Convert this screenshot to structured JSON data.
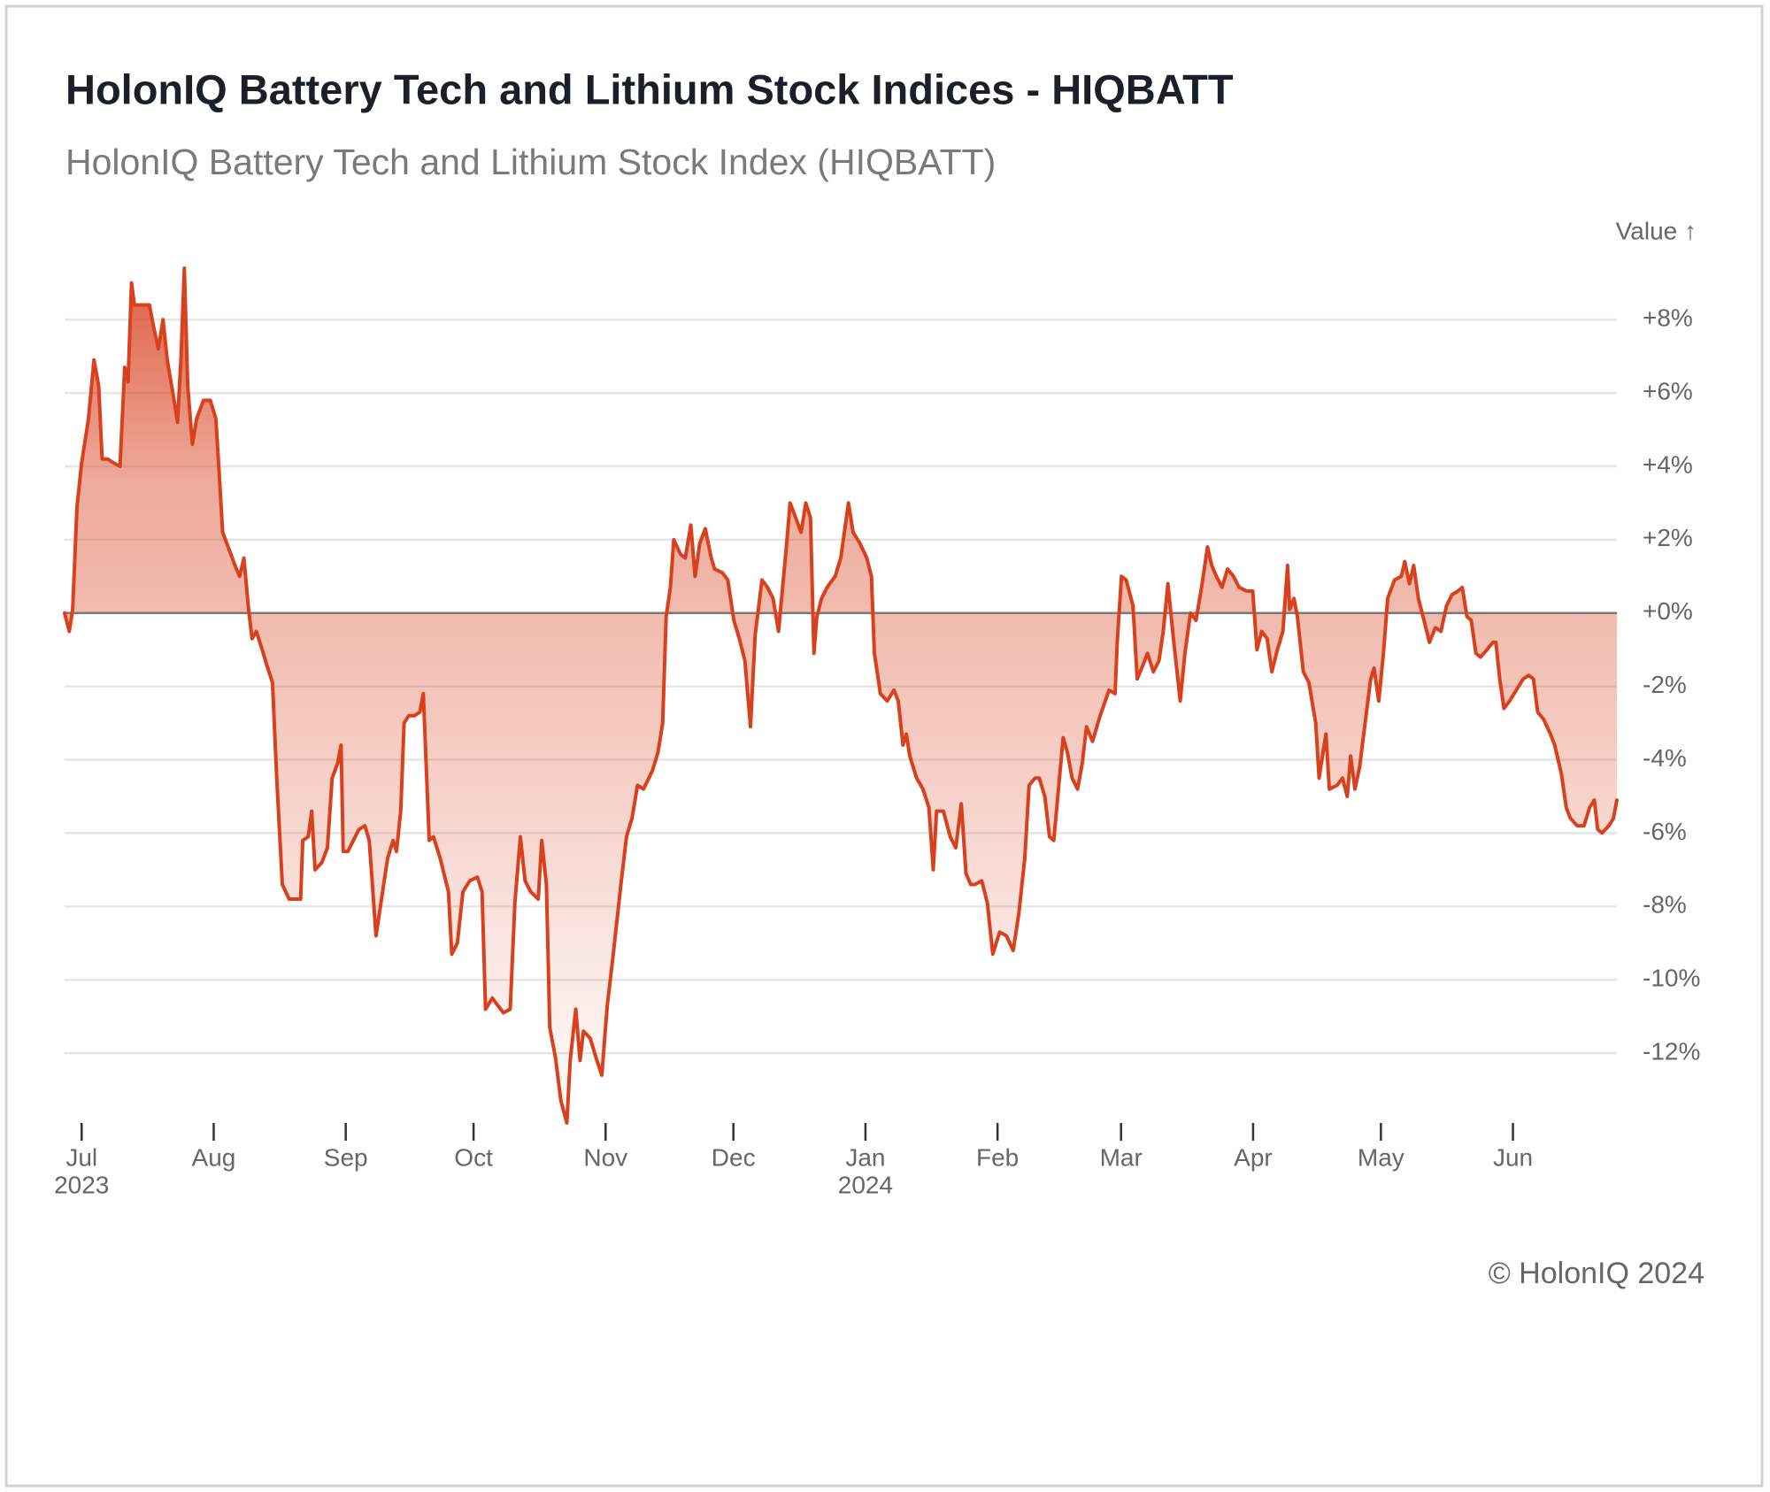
{
  "chart_data": {
    "type": "area",
    "title": "HolonIQ Battery Tech and Lithium Stock Indices - HIQBATT",
    "subtitle": "HolonIQ Battery Tech and Lithium Stock Index (HIQBATT)",
    "y_label": "Value ↑",
    "footer": "© HolonIQ 2024",
    "color": "#d9411e",
    "grid": true,
    "xlim": [
      -4,
      360.4
    ],
    "ylim": [
      -14,
      9.5
    ],
    "xticks": [
      {
        "value": 0,
        "label": "Jul",
        "year": "2023"
      },
      {
        "value": 31,
        "label": "Aug"
      },
      {
        "value": 62,
        "label": "Sep"
      },
      {
        "value": 92,
        "label": "Oct"
      },
      {
        "value": 123,
        "label": "Nov"
      },
      {
        "value": 153,
        "label": "Dec"
      },
      {
        "value": 184,
        "label": "Jan",
        "year": "2024"
      },
      {
        "value": 215,
        "label": "Feb"
      },
      {
        "value": 244,
        "label": "Mar"
      },
      {
        "value": 275,
        "label": "Apr"
      },
      {
        "value": 305,
        "label": "May"
      },
      {
        "value": 336,
        "label": "Jun"
      }
    ],
    "yticks": [
      {
        "value": 8,
        "label": "+8%"
      },
      {
        "value": 6,
        "label": "+6%"
      },
      {
        "value": 4,
        "label": "+4%"
      },
      {
        "value": 2,
        "label": "+2%"
      },
      {
        "value": 0,
        "label": "+0%"
      },
      {
        "value": -2,
        "label": "-2%"
      },
      {
        "value": -4,
        "label": "-4%"
      },
      {
        "value": -6,
        "label": "-6%"
      },
      {
        "value": -8,
        "label": "-8%"
      },
      {
        "value": -10,
        "label": "-10%"
      },
      {
        "value": -12,
        "label": "-12%"
      }
    ],
    "x": [
      -4.0,
      -2.9,
      -2.1,
      -1.1,
      0.0,
      1.6,
      2.9,
      4.0,
      4.8,
      6.1,
      7.4,
      9.0,
      10.1,
      10.9,
      11.7,
      12.4,
      13.8,
      15.9,
      16.9,
      18.0,
      19.1,
      20.1,
      21.7,
      22.5,
      23.3,
      24.1,
      24.9,
      26.0,
      27.0,
      28.6,
      30.2,
      31.5,
      32.3,
      33.1,
      34.4,
      36.0,
      37.1,
      38.1,
      39.2,
      40.0,
      41.0,
      42.4,
      43.4,
      44.8,
      45.8,
      47.1,
      48.7,
      50.3,
      51.4,
      51.9,
      53.2,
      54.0,
      54.8,
      56.4,
      57.7,
      58.8,
      60.1,
      60.9,
      61.4,
      62.5,
      63.8,
      65.1,
      66.5,
      67.5,
      69.1,
      70.4,
      71.8,
      73.1,
      73.9,
      74.9,
      75.7,
      76.8,
      78.1,
      79.4,
      80.2,
      81.6,
      82.6,
      84.2,
      86.1,
      86.9,
      88.2,
      89.5,
      91.1,
      92.9,
      94.0,
      94.8,
      96.4,
      97.7,
      99.0,
      100.6,
      101.7,
      103.0,
      104.1,
      105.4,
      107.2,
      108.0,
      109.1,
      109.9,
      111.2,
      112.5,
      113.9,
      114.7,
      116.0,
      117.0,
      117.8,
      119.4,
      120.7,
      122.1,
      123.4,
      124.7,
      126.6,
      127.9,
      129.2,
      130.5,
      131.9,
      134.0,
      135.3,
      136.4,
      137.2,
      138.2,
      139.0,
      140.6,
      141.7,
      143.0,
      144.0,
      145.1,
      146.4,
      147.8,
      148.6,
      150.4,
      151.7,
      153.1,
      154.4,
      155.7,
      157.0,
      158.1,
      159.7,
      161.0,
      162.3,
      163.6,
      165.5,
      166.3,
      167.3,
      168.9,
      170.0,
      171.1,
      171.9,
      172.6,
      173.7,
      175.0,
      176.9,
      178.2,
      180.0,
      181.1,
      182.7,
      184.3,
      185.4,
      186.1,
      187.5,
      189.1,
      190.7,
      191.7,
      192.8,
      193.6,
      194.4,
      196.0,
      197.5,
      198.9,
      199.9,
      200.7,
      202.3,
      203.9,
      205.2,
      206.5,
      207.6,
      208.7,
      209.7,
      211.3,
      212.6,
      213.9,
      215.5,
      217.1,
      218.7,
      220.0,
      221.4,
      222.4,
      223.8,
      224.8,
      226.1,
      227.2,
      228.2,
      229.3,
      230.4,
      231.4,
      232.5,
      233.8,
      234.9,
      235.9,
      237.3,
      239.1,
      241.2,
      242.6,
      243.1,
      244.1,
      245.2,
      246.8,
      247.8,
      249.2,
      250.2,
      251.6,
      252.9,
      253.9,
      255.0,
      256.3,
      257.9,
      259.0,
      260.3,
      261.6,
      262.9,
      264.3,
      265.3,
      266.4,
      267.7,
      269.0,
      270.4,
      271.7,
      273.5,
      274.9,
      275.9,
      277.0,
      278.3,
      279.4,
      280.7,
      282.0,
      283.1,
      283.6,
      284.6,
      285.4,
      286.8,
      288.1,
      289.7,
      290.5,
      292.1,
      292.9,
      294.7,
      296.0,
      297.1,
      297.9,
      298.9,
      300.0,
      301.3,
      302.6,
      303.4,
      304.5,
      305.6,
      306.6,
      308.2,
      309.8,
      310.6,
      311.7,
      312.7,
      313.8,
      315.1,
      316.4,
      317.8,
      319.1,
      320.4,
      321.7,
      323.1,
      324.1,
      325.2,
      326.2,
      327.3,
      328.4,
      329.9,
      331.3,
      332.0,
      332.9,
      333.9,
      335.2,
      336.8,
      338.4,
      339.7,
      340.8,
      341.8,
      343.2,
      344.8,
      345.8,
      347.4,
      348.5,
      349.5,
      351.1,
      352.7,
      354.0,
      355.1,
      355.9,
      356.9,
      358.5,
      359.6,
      360.4
    ],
    "values": [
      0.0,
      -0.5,
      0.1,
      2.9,
      4.1,
      5.3,
      6.9,
      6.2,
      4.2,
      4.2,
      4.1,
      4.0,
      6.7,
      6.3,
      9.0,
      8.4,
      8.4,
      8.4,
      7.8,
      7.2,
      8.0,
      6.9,
      5.8,
      5.2,
      6.9,
      9.4,
      6.2,
      4.6,
      5.3,
      5.8,
      5.8,
      5.3,
      3.8,
      2.2,
      1.8,
      1.3,
      1.0,
      1.5,
      0.1,
      -0.7,
      -0.5,
      -1.0,
      -1.4,
      -1.9,
      -4.5,
      -7.4,
      -7.8,
      -7.8,
      -7.8,
      -6.2,
      -6.1,
      -5.4,
      -7.0,
      -6.8,
      -6.4,
      -4.5,
      -4.1,
      -3.6,
      -6.5,
      -6.5,
      -6.2,
      -5.9,
      -5.8,
      -6.2,
      -8.8,
      -7.8,
      -6.7,
      -6.2,
      -6.5,
      -5.4,
      -3.0,
      -2.8,
      -2.8,
      -2.7,
      -2.2,
      -6.2,
      -6.1,
      -6.7,
      -7.6,
      -9.3,
      -9.0,
      -7.6,
      -7.3,
      -7.2,
      -7.6,
      -10.8,
      -10.5,
      -10.7,
      -10.9,
      -10.8,
      -7.9,
      -6.1,
      -7.3,
      -7.6,
      -7.8,
      -6.2,
      -7.4,
      -11.3,
      -12.1,
      -13.3,
      -13.9,
      -12.2,
      -10.8,
      -12.2,
      -11.4,
      -11.6,
      -12.1,
      -12.6,
      -10.7,
      -9.4,
      -7.4,
      -6.1,
      -5.6,
      -4.7,
      -4.8,
      -4.3,
      -3.8,
      -3.0,
      -0.1,
      0.7,
      2.0,
      1.6,
      1.5,
      2.4,
      1.0,
      1.9,
      2.3,
      1.5,
      1.2,
      1.1,
      0.9,
      -0.2,
      -0.7,
      -1.3,
      -3.1,
      -0.6,
      0.9,
      0.7,
      0.4,
      -0.5,
      1.9,
      3.0,
      2.7,
      2.2,
      3.0,
      2.6,
      -1.1,
      -0.1,
      0.4,
      0.7,
      1.0,
      1.5,
      3.0,
      2.2,
      1.9,
      1.5,
      1.0,
      -1.1,
      -2.2,
      -2.4,
      -2.1,
      -2.4,
      -3.6,
      -3.3,
      -3.9,
      -4.5,
      -4.8,
      -5.3,
      -7.0,
      -5.4,
      -5.4,
      -6.1,
      -6.4,
      -5.2,
      -7.1,
      -7.4,
      -7.4,
      -7.3,
      -7.9,
      -9.3,
      -8.7,
      -8.8,
      -9.2,
      -8.2,
      -6.7,
      -4.7,
      -4.5,
      -4.5,
      -5.0,
      -6.1,
      -6.2,
      -4.8,
      -3.4,
      -3.8,
      -4.5,
      -4.8,
      -4.1,
      -3.1,
      -3.5,
      -2.8,
      -2.1,
      -2.2,
      -0.8,
      1.0,
      0.9,
      0.2,
      -1.8,
      -1.4,
      -1.1,
      -1.6,
      -1.3,
      -0.5,
      0.8,
      -0.7,
      -2.4,
      -1.1,
      0.0,
      -0.2,
      0.7,
      1.8,
      1.3,
      1.0,
      0.7,
      1.2,
      1.0,
      0.7,
      0.6,
      0.6,
      -1.0,
      -0.5,
      -0.7,
      -1.6,
      -1.0,
      -0.5,
      1.3,
      0.1,
      0.4,
      -0.1,
      -1.6,
      -1.9,
      -3.0,
      -4.5,
      -3.3,
      -4.8,
      -4.7,
      -4.5,
      -5.0,
      -3.9,
      -4.8,
      -4.2,
      -3.0,
      -1.8,
      -1.5,
      -2.4,
      -1.1,
      0.4,
      0.9,
      1.0,
      1.4,
      0.8,
      1.3,
      0.4,
      -0.2,
      -0.8,
      -0.4,
      -0.5,
      0.2,
      0.5,
      0.6,
      0.7,
      -0.1,
      -0.2,
      -1.1,
      -1.2,
      -1.0,
      -0.8,
      -0.8,
      -1.8,
      -2.6,
      -2.4,
      -2.1,
      -1.8,
      -1.7,
      -1.8,
      -2.7,
      -2.9,
      -3.3,
      -3.6,
      -4.4,
      -5.3,
      -5.6,
      -5.8,
      -5.8,
      -5.3,
      -5.1,
      -5.9,
      -6.0,
      -5.8,
      -5.6,
      -5.1
    ]
  }
}
